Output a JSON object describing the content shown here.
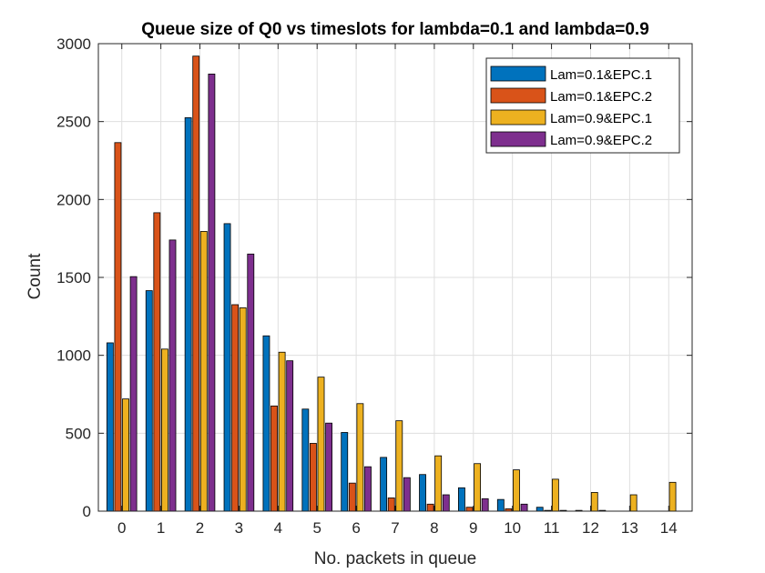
{
  "chart_data": {
    "type": "bar",
    "title": "Queue size of Q0 vs timeslots for lambda=0.1 and lambda=0.9",
    "xlabel": "No. packets in queue",
    "ylabel": "Count",
    "categories": [
      "0",
      "1",
      "2",
      "3",
      "4",
      "5",
      "6",
      "7",
      "8",
      "9",
      "10",
      "11",
      "12",
      "13",
      "14"
    ],
    "ylim": [
      0,
      3000
    ],
    "yticks": [
      0,
      500,
      1000,
      1500,
      2000,
      2500,
      3000
    ],
    "grid": true,
    "legend_position": "top-right",
    "series": [
      {
        "name": "Lam=0.1&EPC.1",
        "color": "#0072BD",
        "values": [
          1080,
          1415,
          2525,
          1845,
          1125,
          655,
          505,
          345,
          235,
          150,
          75,
          25,
          5,
          0,
          0
        ]
      },
      {
        "name": "Lam=0.1&EPC.2",
        "color": "#D95319",
        "values": [
          2365,
          1915,
          2920,
          1325,
          675,
          435,
          180,
          85,
          45,
          25,
          15,
          5,
          0,
          0,
          0
        ]
      },
      {
        "name": "Lam=0.9&EPC.1",
        "color": "#EDB120",
        "values": [
          720,
          1040,
          1795,
          1305,
          1020,
          860,
          690,
          580,
          355,
          305,
          265,
          205,
          120,
          105,
          185
        ]
      },
      {
        "name": "Lam=0.9&EPC.2",
        "color": "#7E2F8E",
        "values": [
          1505,
          1740,
          2805,
          1650,
          965,
          565,
          285,
          215,
          105,
          80,
          45,
          5,
          5,
          0,
          0
        ]
      }
    ]
  }
}
